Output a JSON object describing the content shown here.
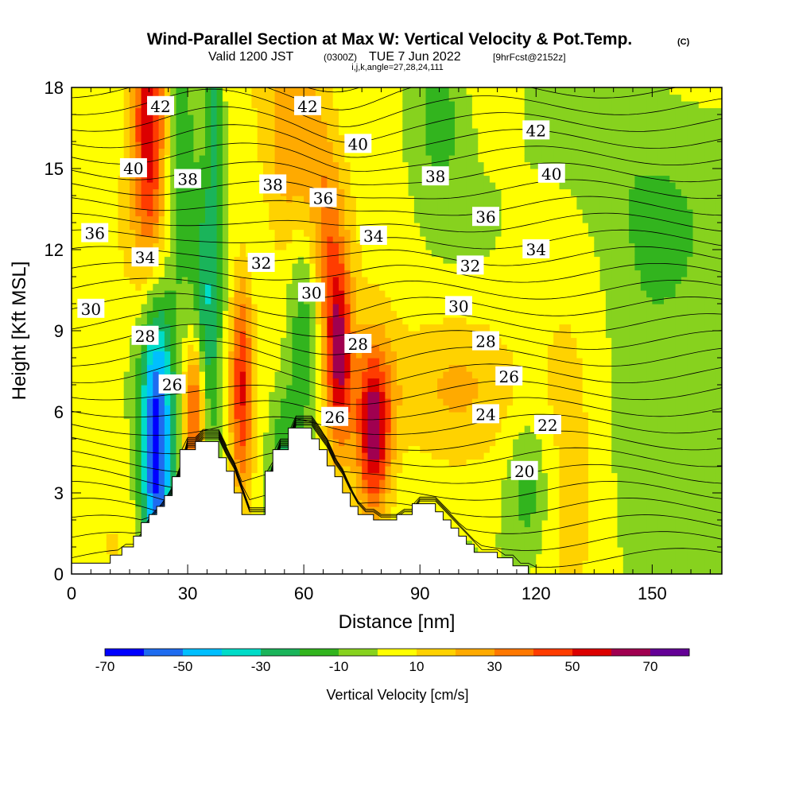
{
  "chart_data": {
    "type": "cross-section contour",
    "title": "Wind-Parallel Section at Max W: Vertical Velocity & Pot.Temp.",
    "title_mark": "(C)",
    "subtitle_valid": "Valid 1200 JST",
    "subtitle_utc": "(0300Z)",
    "subtitle_date": "TUE 7 Jun 2022",
    "subtitle_fcst": "[9hrFcst@2152z]",
    "subtitle_ijk": "i,j,k,angle=27,28,24,111",
    "xlabel": "Distance [nm]",
    "ylabel": "Height [Kft MSL]",
    "xlim": [
      0,
      168
    ],
    "ylim": [
      0,
      18
    ],
    "x_ticks": [
      0,
      30,
      60,
      90,
      120,
      150
    ],
    "y_ticks": [
      0,
      3,
      6,
      9,
      12,
      15,
      18
    ],
    "colorbar": {
      "label": "Vertical Velocity [cm/s]",
      "bounds": [
        -70,
        -60,
        -50,
        -40,
        -30,
        -20,
        -10,
        0,
        10,
        20,
        30,
        40,
        50,
        60,
        70,
        80
      ],
      "tick_labels": [
        "-70",
        "-50",
        "-30",
        "-10",
        "10",
        "30",
        "50",
        "70"
      ],
      "colors": [
        "#0000ff",
        "#1e6cf0",
        "#00bfff",
        "#00dcc8",
        "#1ab45a",
        "#32b41e",
        "#87d21e",
        "#ffff00",
        "#ffd200",
        "#ffaa00",
        "#ff7800",
        "#ff3c00",
        "#dc0000",
        "#a00050",
        "#640096"
      ]
    },
    "terrain": [
      [
        0,
        0.4
      ],
      [
        10,
        0.4
      ],
      [
        10,
        0.7
      ],
      [
        13,
        0.7
      ],
      [
        13,
        1
      ],
      [
        16,
        1
      ],
      [
        16,
        1.4
      ],
      [
        18,
        1.4
      ],
      [
        18,
        1.9
      ],
      [
        20,
        1.9
      ],
      [
        20,
        2.2
      ],
      [
        22,
        2.2
      ],
      [
        22,
        2.5
      ],
      [
        24,
        2.5
      ],
      [
        24,
        2.9
      ],
      [
        26,
        2.9
      ],
      [
        26,
        3.6
      ],
      [
        28,
        3.6
      ],
      [
        28,
        4.6
      ],
      [
        32,
        4.6
      ],
      [
        32,
        4.9
      ],
      [
        38,
        4.9
      ],
      [
        38,
        4.3
      ],
      [
        40,
        4.3
      ],
      [
        40,
        3.8
      ],
      [
        42,
        3.8
      ],
      [
        42,
        3
      ],
      [
        44,
        3
      ],
      [
        44,
        2.2
      ],
      [
        50,
        2.2
      ],
      [
        50,
        3.8
      ],
      [
        52,
        3.8
      ],
      [
        52,
        4.6
      ],
      [
        56,
        4.6
      ],
      [
        56,
        5.4
      ],
      [
        62,
        5.4
      ],
      [
        62,
        5
      ],
      [
        64,
        5
      ],
      [
        64,
        4.6
      ],
      [
        66,
        4.6
      ],
      [
        66,
        4
      ],
      [
        68,
        4
      ],
      [
        68,
        3.6
      ],
      [
        70,
        3.6
      ],
      [
        70,
        3
      ],
      [
        72,
        3
      ],
      [
        72,
        2.5
      ],
      [
        74,
        2.5
      ],
      [
        74,
        2.2
      ],
      [
        78,
        2.2
      ],
      [
        78,
        2
      ],
      [
        84,
        2
      ],
      [
        84,
        2.2
      ],
      [
        88,
        2.2
      ],
      [
        88,
        2.6
      ],
      [
        94,
        2.6
      ],
      [
        94,
        2.3
      ],
      [
        96,
        2.3
      ],
      [
        96,
        2
      ],
      [
        98,
        2
      ],
      [
        98,
        1.7
      ],
      [
        100,
        1.7
      ],
      [
        100,
        1.4
      ],
      [
        102,
        1.4
      ],
      [
        102,
        1.1
      ],
      [
        104,
        1.1
      ],
      [
        104,
        0.8
      ],
      [
        110,
        0.8
      ],
      [
        110,
        0.6
      ],
      [
        114,
        0.6
      ],
      [
        114,
        0.3
      ],
      [
        118,
        0.3
      ],
      [
        118,
        0
      ],
      [
        168,
        0
      ]
    ],
    "w_field": [
      {
        "x": 22,
        "y": 6,
        "sx": 3,
        "sy": 3,
        "v": -62
      },
      {
        "x": 22,
        "y": 2.5,
        "sx": 3,
        "sy": 1.5,
        "v": -30
      },
      {
        "x": 28,
        "y": 15,
        "sx": 3,
        "sy": 4,
        "v": -25
      },
      {
        "x": 22,
        "y": 14,
        "sx": 6,
        "sy": 3,
        "v": 10
      },
      {
        "x": 35,
        "y": 9,
        "sx": 2.5,
        "sy": 4,
        "v": -35
      },
      {
        "x": 37,
        "y": 17,
        "sx": 1.5,
        "sy": 2,
        "v": -30
      },
      {
        "x": 55,
        "y": 4,
        "sx": 3,
        "sy": 2,
        "v": -25
      },
      {
        "x": 60,
        "y": 10,
        "sx": 3,
        "sy": 3,
        "v": -25
      },
      {
        "x": 95,
        "y": 17,
        "sx": 5,
        "sy": 2,
        "v": -20
      },
      {
        "x": 118,
        "y": 3,
        "sx": 4,
        "sy": 2,
        "v": -20
      },
      {
        "x": 145,
        "y": 14,
        "sx": 18,
        "sy": 4,
        "v": -12
      },
      {
        "x": 150,
        "y": 5,
        "sx": 14,
        "sy": 4,
        "v": -12
      },
      {
        "x": 20,
        "y": 18,
        "sx": 3,
        "sy": 4,
        "v": 55
      },
      {
        "x": 32,
        "y": 6,
        "sx": 2,
        "sy": 2,
        "v": 50
      },
      {
        "x": 44,
        "y": 7,
        "sx": 2,
        "sy": 3,
        "v": 45
      },
      {
        "x": 58,
        "y": 16,
        "sx": 6,
        "sy": 3,
        "v": 20
      },
      {
        "x": 66,
        "y": 12,
        "sx": 3,
        "sy": 2.5,
        "v": 20
      },
      {
        "x": 69,
        "y": 8,
        "sx": 2.5,
        "sy": 2.5,
        "v": 60
      },
      {
        "x": 78,
        "y": 5,
        "sx": 3,
        "sy": 2,
        "v": 55
      },
      {
        "x": 78,
        "y": 7,
        "sx": 5,
        "sy": 2,
        "v": 20
      },
      {
        "x": 100,
        "y": 7,
        "sx": 12,
        "sy": 2,
        "v": 15
      },
      {
        "x": 130,
        "y": 6,
        "sx": 8,
        "sy": 4,
        "v": 18
      },
      {
        "x": 60,
        "y": 15,
        "sx": 6,
        "sy": 4,
        "v": 10
      },
      {
        "x": 10,
        "y": 3,
        "sx": 8,
        "sy": 3,
        "v": 5
      }
    ],
    "theta_contours": [
      {
        "label": "20",
        "x": 117,
        "y": 3.8
      },
      {
        "label": "22",
        "x": 123,
        "y": 5.5
      },
      {
        "label": "24",
        "x": 107,
        "y": 5.9
      },
      {
        "label": "26",
        "x": 113,
        "y": 7.3
      },
      {
        "label": "26",
        "x": 68,
        "y": 5.8
      },
      {
        "label": "26",
        "x": 26,
        "y": 7
      },
      {
        "label": "28",
        "x": 107,
        "y": 8.6
      },
      {
        "label": "28",
        "x": 74,
        "y": 8.5
      },
      {
        "label": "28",
        "x": 19,
        "y": 8.8
      },
      {
        "label": "30",
        "x": 5,
        "y": 9.8
      },
      {
        "label": "30",
        "x": 100,
        "y": 9.9
      },
      {
        "label": "30",
        "x": 62,
        "y": 10.4
      },
      {
        "label": "32",
        "x": 103,
        "y": 11.4
      },
      {
        "label": "32",
        "x": 49,
        "y": 11.5
      },
      {
        "label": "34",
        "x": 19,
        "y": 11.7
      },
      {
        "label": "34",
        "x": 78,
        "y": 12.5
      },
      {
        "label": "34",
        "x": 120,
        "y": 12
      },
      {
        "label": "36",
        "x": 6,
        "y": 12.6
      },
      {
        "label": "36",
        "x": 65,
        "y": 13.9
      },
      {
        "label": "36",
        "x": 107,
        "y": 13.2
      },
      {
        "label": "38",
        "x": 52,
        "y": 14.4
      },
      {
        "label": "38",
        "x": 30,
        "y": 14.6
      },
      {
        "label": "38",
        "x": 94,
        "y": 14.7
      },
      {
        "label": "40",
        "x": 16,
        "y": 15
      },
      {
        "label": "40",
        "x": 74,
        "y": 15.9
      },
      {
        "label": "40",
        "x": 124,
        "y": 14.8
      },
      {
        "label": "42",
        "x": 23,
        "y": 17.3
      },
      {
        "label": "42",
        "x": 61,
        "y": 17.3
      },
      {
        "label": "42",
        "x": 120,
        "y": 16.4
      }
    ]
  }
}
